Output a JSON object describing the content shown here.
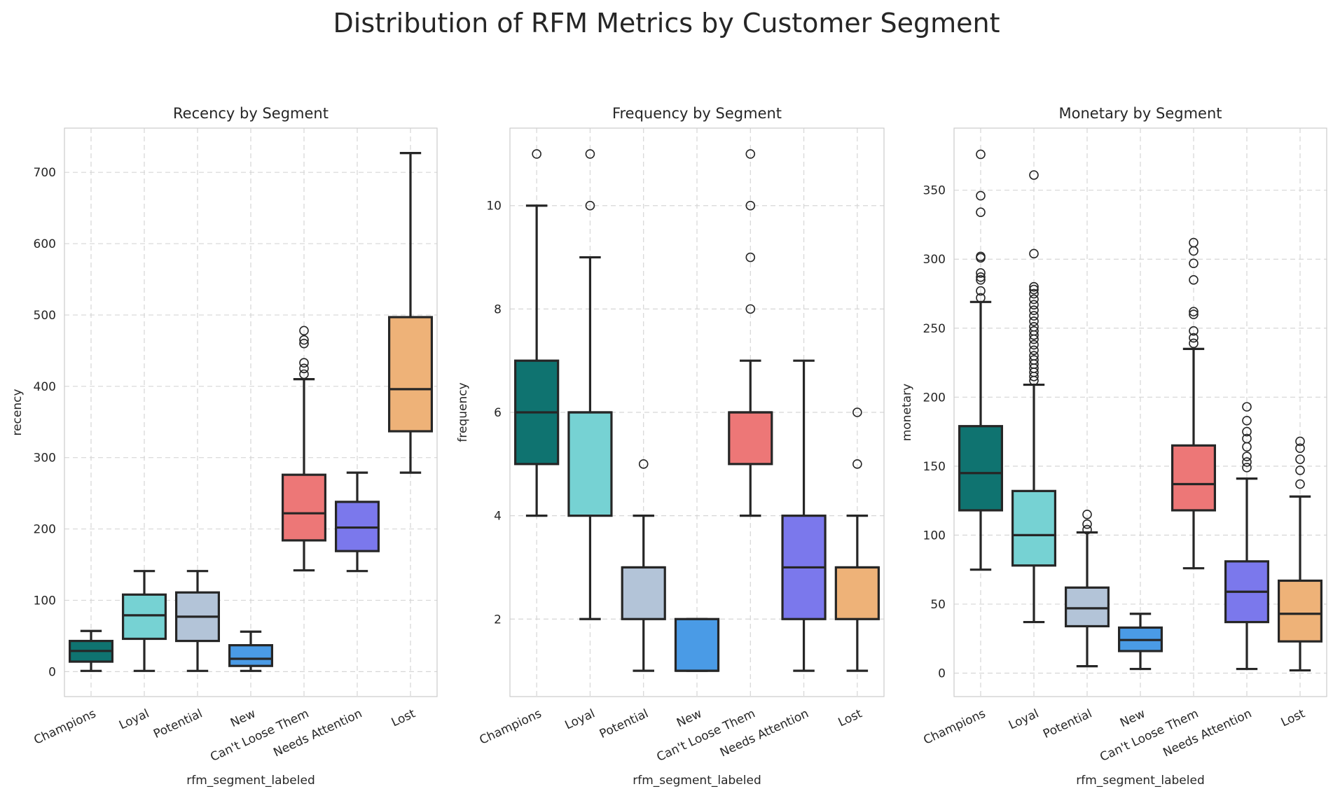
{
  "title": "Distribution of RFM Metrics by Customer Segment",
  "colors": [
    "#0f7370",
    "#76d2d3",
    "#b3c4d8",
    "#4a9be6",
    "#ed7777",
    "#7b78ec",
    "#eeb278"
  ],
  "chart_data": [
    {
      "type": "box",
      "title": "Recency by Segment",
      "xlabel": "rfm_segment_labeled",
      "ylabel": "recency",
      "categories": [
        "Champions",
        "Loyal",
        "Potential",
        "New",
        "Can't Loose Them",
        "Needs Attention",
        "Lost"
      ],
      "ylim": [
        -35,
        762
      ],
      "yticks": [
        0,
        100,
        200,
        300,
        400,
        500,
        600,
        700
      ],
      "boxes": [
        {
          "whislo": 1,
          "q1": 14,
          "med": 29,
          "q3": 43,
          "whishi": 57,
          "fliers": []
        },
        {
          "whislo": 1,
          "q1": 46,
          "med": 79,
          "q3": 108,
          "whishi": 141,
          "fliers": []
        },
        {
          "whislo": 1,
          "q1": 43,
          "med": 77,
          "q3": 111,
          "whishi": 141,
          "fliers": []
        },
        {
          "whislo": 1,
          "q1": 8,
          "med": 18,
          "q3": 37,
          "whishi": 56,
          "fliers": []
        },
        {
          "whislo": 142,
          "q1": 184,
          "med": 222,
          "q3": 276,
          "whishi": 410,
          "fliers": [
            417,
            425,
            433,
            460,
            465,
            478
          ]
        },
        {
          "whislo": 141,
          "q1": 169,
          "med": 202,
          "q3": 238,
          "whishi": 279,
          "fliers": []
        },
        {
          "whislo": 279,
          "q1": 337,
          "med": 396,
          "q3": 497,
          "whishi": 727,
          "fliers": []
        }
      ]
    },
    {
      "type": "box",
      "title": "Frequency by Segment",
      "xlabel": "rfm_segment_labeled",
      "ylabel": "frequency",
      "categories": [
        "Champions",
        "Loyal",
        "Potential",
        "New",
        "Can't Loose Them",
        "Needs Attention",
        "Lost"
      ],
      "ylim": [
        0.5,
        11.5
      ],
      "yticks": [
        2,
        4,
        6,
        8,
        10
      ],
      "boxes": [
        {
          "whislo": 4,
          "q1": 5,
          "med": 6,
          "q3": 7,
          "whishi": 10,
          "fliers": [
            11
          ]
        },
        {
          "whislo": 2,
          "q1": 4,
          "med": 6,
          "q3": 6,
          "whishi": 9,
          "fliers": [
            10,
            11
          ]
        },
        {
          "whislo": 1,
          "q1": 2,
          "med": 3,
          "q3": 3,
          "whishi": 4,
          "fliers": [
            5
          ]
        },
        {
          "whislo": 1,
          "q1": 1,
          "med": 1,
          "q3": 2,
          "whishi": 2,
          "fliers": []
        },
        {
          "whislo": 4,
          "q1": 5,
          "med": 6,
          "q3": 6,
          "whishi": 7,
          "fliers": [
            8,
            9,
            10,
            11
          ]
        },
        {
          "whislo": 1,
          "q1": 2,
          "med": 3,
          "q3": 4,
          "whishi": 7,
          "fliers": []
        },
        {
          "whislo": 1,
          "q1": 2,
          "med": 3,
          "q3": 3,
          "whishi": 4,
          "fliers": [
            5,
            6
          ]
        }
      ]
    },
    {
      "type": "box",
      "title": "Monetary by Segment",
      "xlabel": "rfm_segment_labeled",
      "ylabel": "monetary",
      "categories": [
        "Champions",
        "Loyal",
        "Potential",
        "New",
        "Can't Loose Them",
        "Needs Attention",
        "Lost"
      ],
      "ylim": [
        -17,
        395
      ],
      "yticks": [
        0,
        50,
        100,
        150,
        200,
        250,
        300,
        350
      ],
      "boxes": [
        {
          "whislo": 75,
          "q1": 118,
          "med": 145,
          "q3": 179,
          "whishi": 269,
          "fliers": [
            272,
            277,
            285,
            287,
            290,
            301,
            302,
            334,
            346,
            376
          ]
        },
        {
          "whislo": 37,
          "q1": 78,
          "med": 100,
          "q3": 132,
          "whishi": 209,
          "fliers": [
            212,
            215,
            218,
            221,
            224,
            227,
            230,
            234,
            238,
            242,
            245,
            248,
            251,
            255,
            259,
            263,
            267,
            271,
            275,
            278,
            280,
            304,
            361
          ]
        },
        {
          "whislo": 5,
          "q1": 34,
          "med": 47,
          "q3": 62,
          "whishi": 102,
          "fliers": [
            104,
            108,
            115
          ]
        },
        {
          "whislo": 3,
          "q1": 16,
          "med": 24,
          "q3": 33,
          "whishi": 43,
          "fliers": []
        },
        {
          "whislo": 76,
          "q1": 118,
          "med": 137,
          "q3": 165,
          "whishi": 235,
          "fliers": [
            239,
            243,
            248,
            260,
            262,
            285,
            297,
            306,
            312
          ]
        },
        {
          "whislo": 3,
          "q1": 37,
          "med": 59,
          "q3": 81,
          "whishi": 141,
          "fliers": [
            149,
            153,
            157,
            164,
            170,
            175,
            183,
            193
          ]
        },
        {
          "whislo": 2,
          "q1": 23,
          "med": 43,
          "q3": 67,
          "whishi": 128,
          "fliers": [
            137,
            147,
            155,
            163,
            168
          ]
        }
      ]
    }
  ]
}
